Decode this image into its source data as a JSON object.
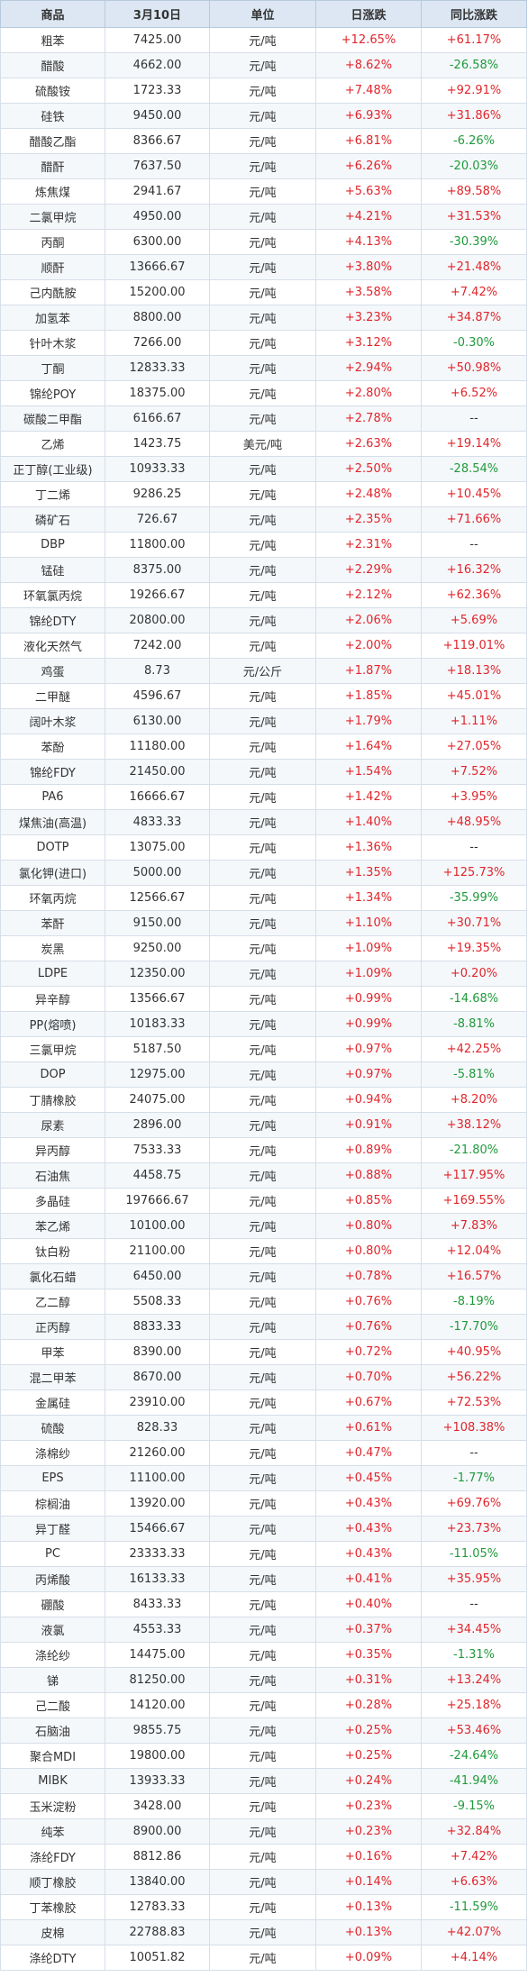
{
  "headers": [
    "商品",
    "3月10日",
    "单位",
    "日涨跌",
    "同比涨跌"
  ],
  "rows": [
    [
      "粗苯",
      "7425.00",
      "元/吨",
      "+12.65%",
      "+61.17%"
    ],
    [
      "醋酸",
      "4662.00",
      "元/吨",
      "+8.62%",
      "-26.58%"
    ],
    [
      "硫酸铵",
      "1723.33",
      "元/吨",
      "+7.48%",
      "+92.91%"
    ],
    [
      "硅铁",
      "9450.00",
      "元/吨",
      "+6.93%",
      "+31.86%"
    ],
    [
      "醋酸乙酯",
      "8366.67",
      "元/吨",
      "+6.81%",
      "-6.26%"
    ],
    [
      "醋酐",
      "7637.50",
      "元/吨",
      "+6.26%",
      "-20.03%"
    ],
    [
      "炼焦煤",
      "2941.67",
      "元/吨",
      "+5.63%",
      "+89.58%"
    ],
    [
      "二氯甲烷",
      "4950.00",
      "元/吨",
      "+4.21%",
      "+31.53%"
    ],
    [
      "丙酮",
      "6300.00",
      "元/吨",
      "+4.13%",
      "-30.39%"
    ],
    [
      "顺酐",
      "13666.67",
      "元/吨",
      "+3.80%",
      "+21.48%"
    ],
    [
      "己内酰胺",
      "15200.00",
      "元/吨",
      "+3.58%",
      "+7.42%"
    ],
    [
      "加氢苯",
      "8800.00",
      "元/吨",
      "+3.23%",
      "+34.87%"
    ],
    [
      "针叶木浆",
      "7266.00",
      "元/吨",
      "+3.12%",
      "-0.30%"
    ],
    [
      "丁酮",
      "12833.33",
      "元/吨",
      "+2.94%",
      "+50.98%"
    ],
    [
      "锦纶POY",
      "18375.00",
      "元/吨",
      "+2.80%",
      "+6.52%"
    ],
    [
      "碳酸二甲酯",
      "6166.67",
      "元/吨",
      "+2.78%",
      "--"
    ],
    [
      "乙烯",
      "1423.75",
      "美元/吨",
      "+2.63%",
      "+19.14%"
    ],
    [
      "正丁醇(工业级)",
      "10933.33",
      "元/吨",
      "+2.50%",
      "-28.54%"
    ],
    [
      "丁二烯",
      "9286.25",
      "元/吨",
      "+2.48%",
      "+10.45%"
    ],
    [
      "磷矿石",
      "726.67",
      "元/吨",
      "+2.35%",
      "+71.66%"
    ],
    [
      "DBP",
      "11800.00",
      "元/吨",
      "+2.31%",
      "--"
    ],
    [
      "锰硅",
      "8375.00",
      "元/吨",
      "+2.29%",
      "+16.32%"
    ],
    [
      "环氧氯丙烷",
      "19266.67",
      "元/吨",
      "+2.12%",
      "+62.36%"
    ],
    [
      "锦纶DTY",
      "20800.00",
      "元/吨",
      "+2.06%",
      "+5.69%"
    ],
    [
      "液化天然气",
      "7242.00",
      "元/吨",
      "+2.00%",
      "+119.01%"
    ],
    [
      "鸡蛋",
      "8.73",
      "元/公斤",
      "+1.87%",
      "+18.13%"
    ],
    [
      "二甲醚",
      "4596.67",
      "元/吨",
      "+1.85%",
      "+45.01%"
    ],
    [
      "阔叶木浆",
      "6130.00",
      "元/吨",
      "+1.79%",
      "+1.11%"
    ],
    [
      "苯酚",
      "11180.00",
      "元/吨",
      "+1.64%",
      "+27.05%"
    ],
    [
      "锦纶FDY",
      "21450.00",
      "元/吨",
      "+1.54%",
      "+7.52%"
    ],
    [
      "PA6",
      "16666.67",
      "元/吨",
      "+1.42%",
      "+3.95%"
    ],
    [
      "煤焦油(高温)",
      "4833.33",
      "元/吨",
      "+1.40%",
      "+48.95%"
    ],
    [
      "DOTP",
      "13075.00",
      "元/吨",
      "+1.36%",
      "--"
    ],
    [
      "氯化钾(进口)",
      "5000.00",
      "元/吨",
      "+1.35%",
      "+125.73%"
    ],
    [
      "环氧丙烷",
      "12566.67",
      "元/吨",
      "+1.34%",
      "-35.99%"
    ],
    [
      "苯酐",
      "9150.00",
      "元/吨",
      "+1.10%",
      "+30.71%"
    ],
    [
      "炭黑",
      "9250.00",
      "元/吨",
      "+1.09%",
      "+19.35%"
    ],
    [
      "LDPE",
      "12350.00",
      "元/吨",
      "+1.09%",
      "+0.20%"
    ],
    [
      "异辛醇",
      "13566.67",
      "元/吨",
      "+0.99%",
      "-14.68%"
    ],
    [
      "PP(熔喷)",
      "10183.33",
      "元/吨",
      "+0.99%",
      "-8.81%"
    ],
    [
      "三氯甲烷",
      "5187.50",
      "元/吨",
      "+0.97%",
      "+42.25%"
    ],
    [
      "DOP",
      "12975.00",
      "元/吨",
      "+0.97%",
      "-5.81%"
    ],
    [
      "丁腈橡胶",
      "24075.00",
      "元/吨",
      "+0.94%",
      "+8.20%"
    ],
    [
      "尿素",
      "2896.00",
      "元/吨",
      "+0.91%",
      "+38.12%"
    ],
    [
      "异丙醇",
      "7533.33",
      "元/吨",
      "+0.89%",
      "-21.80%"
    ],
    [
      "石油焦",
      "4458.75",
      "元/吨",
      "+0.88%",
      "+117.95%"
    ],
    [
      "多晶硅",
      "197666.67",
      "元/吨",
      "+0.85%",
      "+169.55%"
    ],
    [
      "苯乙烯",
      "10100.00",
      "元/吨",
      "+0.80%",
      "+7.83%"
    ],
    [
      "钛白粉",
      "21100.00",
      "元/吨",
      "+0.80%",
      "+12.04%"
    ],
    [
      "氯化石蜡",
      "6450.00",
      "元/吨",
      "+0.78%",
      "+16.57%"
    ],
    [
      "乙二醇",
      "5508.33",
      "元/吨",
      "+0.76%",
      "-8.19%"
    ],
    [
      "正丙醇",
      "8833.33",
      "元/吨",
      "+0.76%",
      "-17.70%"
    ],
    [
      "甲苯",
      "8390.00",
      "元/吨",
      "+0.72%",
      "+40.95%"
    ],
    [
      "混二甲苯",
      "8670.00",
      "元/吨",
      "+0.70%",
      "+56.22%"
    ],
    [
      "金属硅",
      "23910.00",
      "元/吨",
      "+0.67%",
      "+72.53%"
    ],
    [
      "硫酸",
      "828.33",
      "元/吨",
      "+0.61%",
      "+108.38%"
    ],
    [
      "涤棉纱",
      "21260.00",
      "元/吨",
      "+0.47%",
      "--"
    ],
    [
      "EPS",
      "11100.00",
      "元/吨",
      "+0.45%",
      "-1.77%"
    ],
    [
      "棕榈油",
      "13920.00",
      "元/吨",
      "+0.43%",
      "+69.76%"
    ],
    [
      "异丁醛",
      "15466.67",
      "元/吨",
      "+0.43%",
      "+23.73%"
    ],
    [
      "PC",
      "23333.33",
      "元/吨",
      "+0.43%",
      "-11.05%"
    ],
    [
      "丙烯酸",
      "16133.33",
      "元/吨",
      "+0.41%",
      "+35.95%"
    ],
    [
      "硼酸",
      "8433.33",
      "元/吨",
      "+0.40%",
      "--"
    ],
    [
      "液氯",
      "4553.33",
      "元/吨",
      "+0.37%",
      "+34.45%"
    ],
    [
      "涤纶纱",
      "14475.00",
      "元/吨",
      "+0.35%",
      "-1.31%"
    ],
    [
      "锑",
      "81250.00",
      "元/吨",
      "+0.31%",
      "+13.24%"
    ],
    [
      "己二酸",
      "14120.00",
      "元/吨",
      "+0.28%",
      "+25.18%"
    ],
    [
      "石脑油",
      "9855.75",
      "元/吨",
      "+0.25%",
      "+53.46%"
    ],
    [
      "聚合MDI",
      "19800.00",
      "元/吨",
      "+0.25%",
      "-24.64%"
    ],
    [
      "MIBK",
      "13933.33",
      "元/吨",
      "+0.24%",
      "-41.94%"
    ],
    [
      "玉米淀粉",
      "3428.00",
      "元/吨",
      "+0.23%",
      "-9.15%"
    ],
    [
      "纯苯",
      "8900.00",
      "元/吨",
      "+0.23%",
      "+32.84%"
    ],
    [
      "涤纶FDY",
      "8812.86",
      "元/吨",
      "+0.16%",
      "+7.42%"
    ],
    [
      "顺丁橡胶",
      "13840.00",
      "元/吨",
      "+0.14%",
      "+6.63%"
    ],
    [
      "丁苯橡胶",
      "12783.33",
      "元/吨",
      "+0.13%",
      "-11.59%"
    ],
    [
      "皮棉",
      "22788.83",
      "元/吨",
      "+0.13%",
      "+42.07%"
    ],
    [
      "涤纶DTY",
      "10051.82",
      "元/吨",
      "+0.09%",
      "+4.14%"
    ]
  ],
  "colors": {
    "up": "#e0252b",
    "down": "#1f9a3b",
    "neutral": "#333333",
    "header_bg": "#dce7f3",
    "stripe": "#f5f8fb"
  }
}
